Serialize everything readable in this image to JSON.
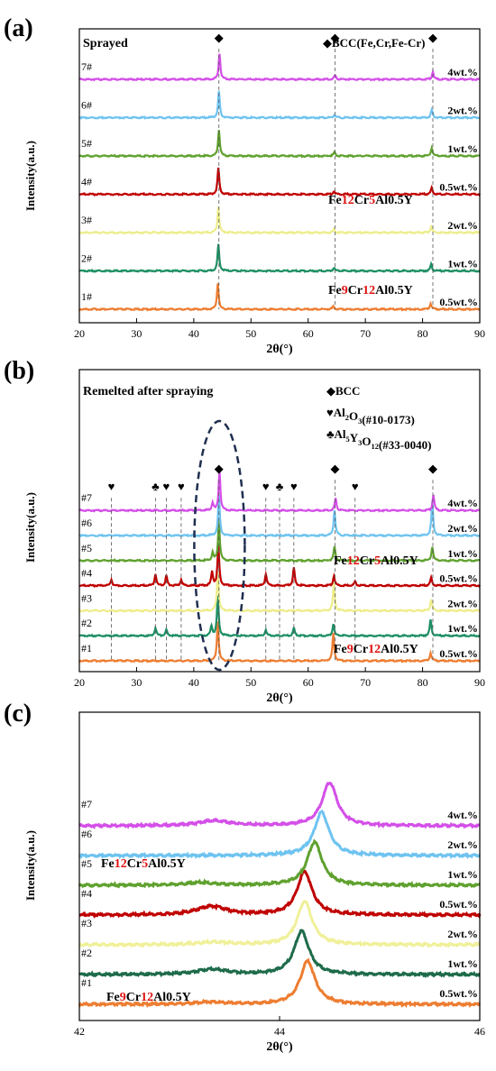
{
  "chart_data": [
    {
      "panel_label": "(a)",
      "type": "line",
      "title": "Sprayed",
      "xlabel": "2θ(°)",
      "ylabel": "Intensity(a.u.)",
      "xlim": [
        20,
        90
      ],
      "xticks": [
        20,
        30,
        40,
        50,
        60,
        70,
        80,
        90
      ],
      "legend": [
        "◆BCC(Fe,Cr,Fe-Cr)"
      ],
      "group_labels": [
        {
          "parts": [
            [
              "Fe",
              ""
            ],
            [
              "12",
              "red"
            ],
            [
              "Cr",
              ""
            ],
            [
              "5",
              "red"
            ],
            [
              "Al0.5Y",
              ""
            ]
          ],
          "near": "4#"
        },
        {
          "parts": [
            [
              "Fe",
              ""
            ],
            [
              "9",
              "red"
            ],
            [
              "Cr",
              ""
            ],
            [
              "12",
              "red"
            ],
            [
              "Al0.5Y",
              ""
            ]
          ],
          "near": "1#"
        }
      ],
      "peak_markers": [
        {
          "symbol": "◆",
          "x": [
            44.4,
            64.7,
            81.8
          ]
        }
      ],
      "series": [
        {
          "name": "1#",
          "wt": "0.5wt.%",
          "color": "#ED7D31",
          "peaks": [
            [
              44.2,
              1.0
            ],
            [
              64.4,
              0.12
            ],
            [
              81.4,
              0.22
            ]
          ]
        },
        {
          "name": "2#",
          "wt": "1wt.%",
          "color": "#1E8F65",
          "peaks": [
            [
              44.3,
              1.0
            ],
            [
              64.5,
              0.12
            ],
            [
              81.5,
              0.25
            ]
          ]
        },
        {
          "name": "3#",
          "wt": "2wt.%",
          "color": "#EDED8C",
          "peaks": [
            [
              44.3,
              1.0
            ],
            [
              64.5,
              0.12
            ],
            [
              81.5,
              0.25
            ]
          ]
        },
        {
          "name": "4#",
          "wt": "0.5wt.%",
          "color": "#C00000",
          "peaks": [
            [
              44.3,
              1.0
            ],
            [
              64.5,
              0.12
            ],
            [
              81.6,
              0.25
            ]
          ]
        },
        {
          "name": "5#",
          "wt": "1wt.%",
          "color": "#5FA12E",
          "peaks": [
            [
              44.4,
              1.0
            ],
            [
              64.6,
              0.15
            ],
            [
              81.6,
              0.32
            ]
          ]
        },
        {
          "name": "6#",
          "wt": "2wt.%",
          "color": "#6EC3F0",
          "peaks": [
            [
              44.4,
              1.0
            ],
            [
              64.6,
              0.12
            ],
            [
              81.6,
              0.3
            ]
          ]
        },
        {
          "name": "7#",
          "wt": "4wt.%",
          "color": "#D44FE8",
          "peaks": [
            [
              44.5,
              1.0
            ],
            [
              64.7,
              0.15
            ],
            [
              81.8,
              0.3
            ]
          ]
        }
      ]
    },
    {
      "panel_label": "(b)",
      "type": "line",
      "title": "Remelted after spraying",
      "xlabel": "2θ(°)",
      "ylabel": "Intensity(a.u.)",
      "xlim": [
        20,
        90
      ],
      "xticks": [
        20,
        30,
        40,
        50,
        60,
        70,
        80,
        90
      ],
      "legend": [
        [
          [
            "◆BCC",
            ""
          ]
        ],
        [
          [
            "♥Al",
            ""
          ],
          [
            "2",
            "sub"
          ],
          [
            "O",
            ""
          ],
          [
            "3",
            "sub"
          ],
          [
            "(#10-0173)",
            ""
          ]
        ],
        [
          [
            "♣Al",
            ""
          ],
          [
            "5",
            "sub"
          ],
          [
            "Y",
            ""
          ],
          [
            "3",
            "sub"
          ],
          [
            "O",
            ""
          ],
          [
            "12",
            "sub"
          ],
          [
            "(#33-0040)",
            ""
          ]
        ]
      ],
      "group_labels": [
        {
          "parts": [
            [
              "Fe",
              ""
            ],
            [
              "12",
              "red"
            ],
            [
              "Cr",
              ""
            ],
            [
              "5",
              "red"
            ],
            [
              "Al0.5Y",
              ""
            ]
          ],
          "near": "#4"
        },
        {
          "parts": [
            [
              "Fe",
              ""
            ],
            [
              "9",
              "red"
            ],
            [
              "Cr",
              ""
            ],
            [
              "12",
              "red"
            ],
            [
              "Al0.5Y",
              ""
            ]
          ],
          "near": "#1"
        }
      ],
      "peak_markers": [
        {
          "symbol": "♥",
          "x": [
            25.6,
            35.2,
            37.8,
            52.6,
            57.5,
            68.2
          ]
        },
        {
          "symbol": "♣",
          "x": [
            33.3,
            55.0
          ]
        },
        {
          "symbol": "◆",
          "x": [
            44.4,
            64.7,
            81.8
          ]
        }
      ],
      "series": [
        {
          "name": "#1",
          "wt": "0.5wt.%",
          "color": "#ED7D31",
          "peaks": [
            [
              44.2,
              1.0
            ],
            [
              64.4,
              0.7
            ],
            [
              81.4,
              0.2
            ]
          ]
        },
        {
          "name": "#2",
          "wt": "1wt.%",
          "color": "#1E8F65",
          "peaks": [
            [
              33.3,
              0.2
            ],
            [
              35.2,
              0.15
            ],
            [
              43.1,
              0.25
            ],
            [
              44.2,
              1.0
            ],
            [
              52.6,
              0.15
            ],
            [
              57.5,
              0.2
            ],
            [
              64.4,
              0.3
            ],
            [
              81.4,
              0.4
            ]
          ]
        },
        {
          "name": "#3",
          "wt": "2wt.%",
          "color": "#EDED8C",
          "peaks": [
            [
              44.2,
              1.0
            ],
            [
              64.5,
              0.7
            ],
            [
              81.5,
              0.3
            ]
          ]
        },
        {
          "name": "#4",
          "wt": "0.5wt.%",
          "color": "#C00000",
          "peaks": [
            [
              25.6,
              0.15
            ],
            [
              33.3,
              0.3
            ],
            [
              35.2,
              0.25
            ],
            [
              37.8,
              0.15
            ],
            [
              43.2,
              0.35
            ],
            [
              44.3,
              1.0
            ],
            [
              52.6,
              0.3
            ],
            [
              57.5,
              0.45
            ],
            [
              64.5,
              0.25
            ],
            [
              68.2,
              0.1
            ],
            [
              81.5,
              0.2
            ]
          ]
        },
        {
          "name": "#5",
          "wt": "1wt.%",
          "color": "#5FA12E",
          "peaks": [
            [
              43.3,
              0.2
            ],
            [
              44.4,
              1.0
            ],
            [
              64.6,
              0.35
            ],
            [
              81.7,
              0.35
            ]
          ]
        },
        {
          "name": "#6",
          "wt": "2wt.%",
          "color": "#6EC3F0",
          "peaks": [
            [
              44.4,
              1.0
            ],
            [
              64.6,
              0.65
            ],
            [
              81.7,
              0.85
            ]
          ]
        },
        {
          "name": "#7",
          "wt": "4wt.%",
          "color": "#D44FE8",
          "peaks": [
            [
              43.3,
              0.2
            ],
            [
              44.5,
              1.0
            ],
            [
              64.8,
              0.3
            ],
            [
              81.9,
              0.4
            ]
          ]
        }
      ]
    },
    {
      "panel_label": "(c)",
      "type": "line",
      "title": "",
      "xlabel": "2θ(°)",
      "ylabel": "Intensity(a.u.)",
      "xlim": [
        42,
        46
      ],
      "xticks": [
        42,
        44,
        46
      ],
      "group_labels": [
        {
          "parts": [
            [
              "Fe",
              ""
            ],
            [
              "12",
              "red"
            ],
            [
              "Cr",
              ""
            ],
            [
              "5",
              "red"
            ],
            [
              "Al0.5Y",
              ""
            ]
          ],
          "near": "#4"
        },
        {
          "parts": [
            [
              "Fe",
              ""
            ],
            [
              "9",
              "red"
            ],
            [
              "Cr",
              ""
            ],
            [
              "12",
              "red"
            ],
            [
              "Al0.5Y",
              ""
            ]
          ],
          "near": "#1"
        }
      ],
      "series": [
        {
          "name": "#1",
          "wt": "0.5wt.%",
          "color": "#ED7D31",
          "peaks": [
            [
              44.28,
              1.0
            ],
            [
              43.3,
              0.05
            ]
          ]
        },
        {
          "name": "#2",
          "wt": "1wt.%",
          "color": "#1E6B4A",
          "peaks": [
            [
              44.22,
              1.0
            ],
            [
              43.32,
              0.12
            ]
          ]
        },
        {
          "name": "#3",
          "wt": "2wt.%",
          "color": "#F0F09A",
          "peaks": [
            [
              44.25,
              1.0
            ],
            [
              43.35,
              0.06
            ]
          ]
        },
        {
          "name": "#4",
          "wt": "0.5wt.%",
          "color": "#C00000",
          "peaks": [
            [
              44.25,
              1.0
            ],
            [
              43.32,
              0.2
            ]
          ]
        },
        {
          "name": "#5",
          "wt": "1wt.%",
          "color": "#5FA12E",
          "peaks": [
            [
              44.35,
              1.0
            ],
            [
              43.2,
              0.06
            ]
          ]
        },
        {
          "name": "#6",
          "wt": "2wt.%",
          "color": "#6EC3F0",
          "peaks": [
            [
              44.42,
              1.0
            ]
          ]
        },
        {
          "name": "#7",
          "wt": "4wt.%",
          "color": "#D44FE8",
          "peaks": [
            [
              44.5,
              1.0
            ],
            [
              43.35,
              0.12
            ]
          ]
        }
      ]
    }
  ]
}
